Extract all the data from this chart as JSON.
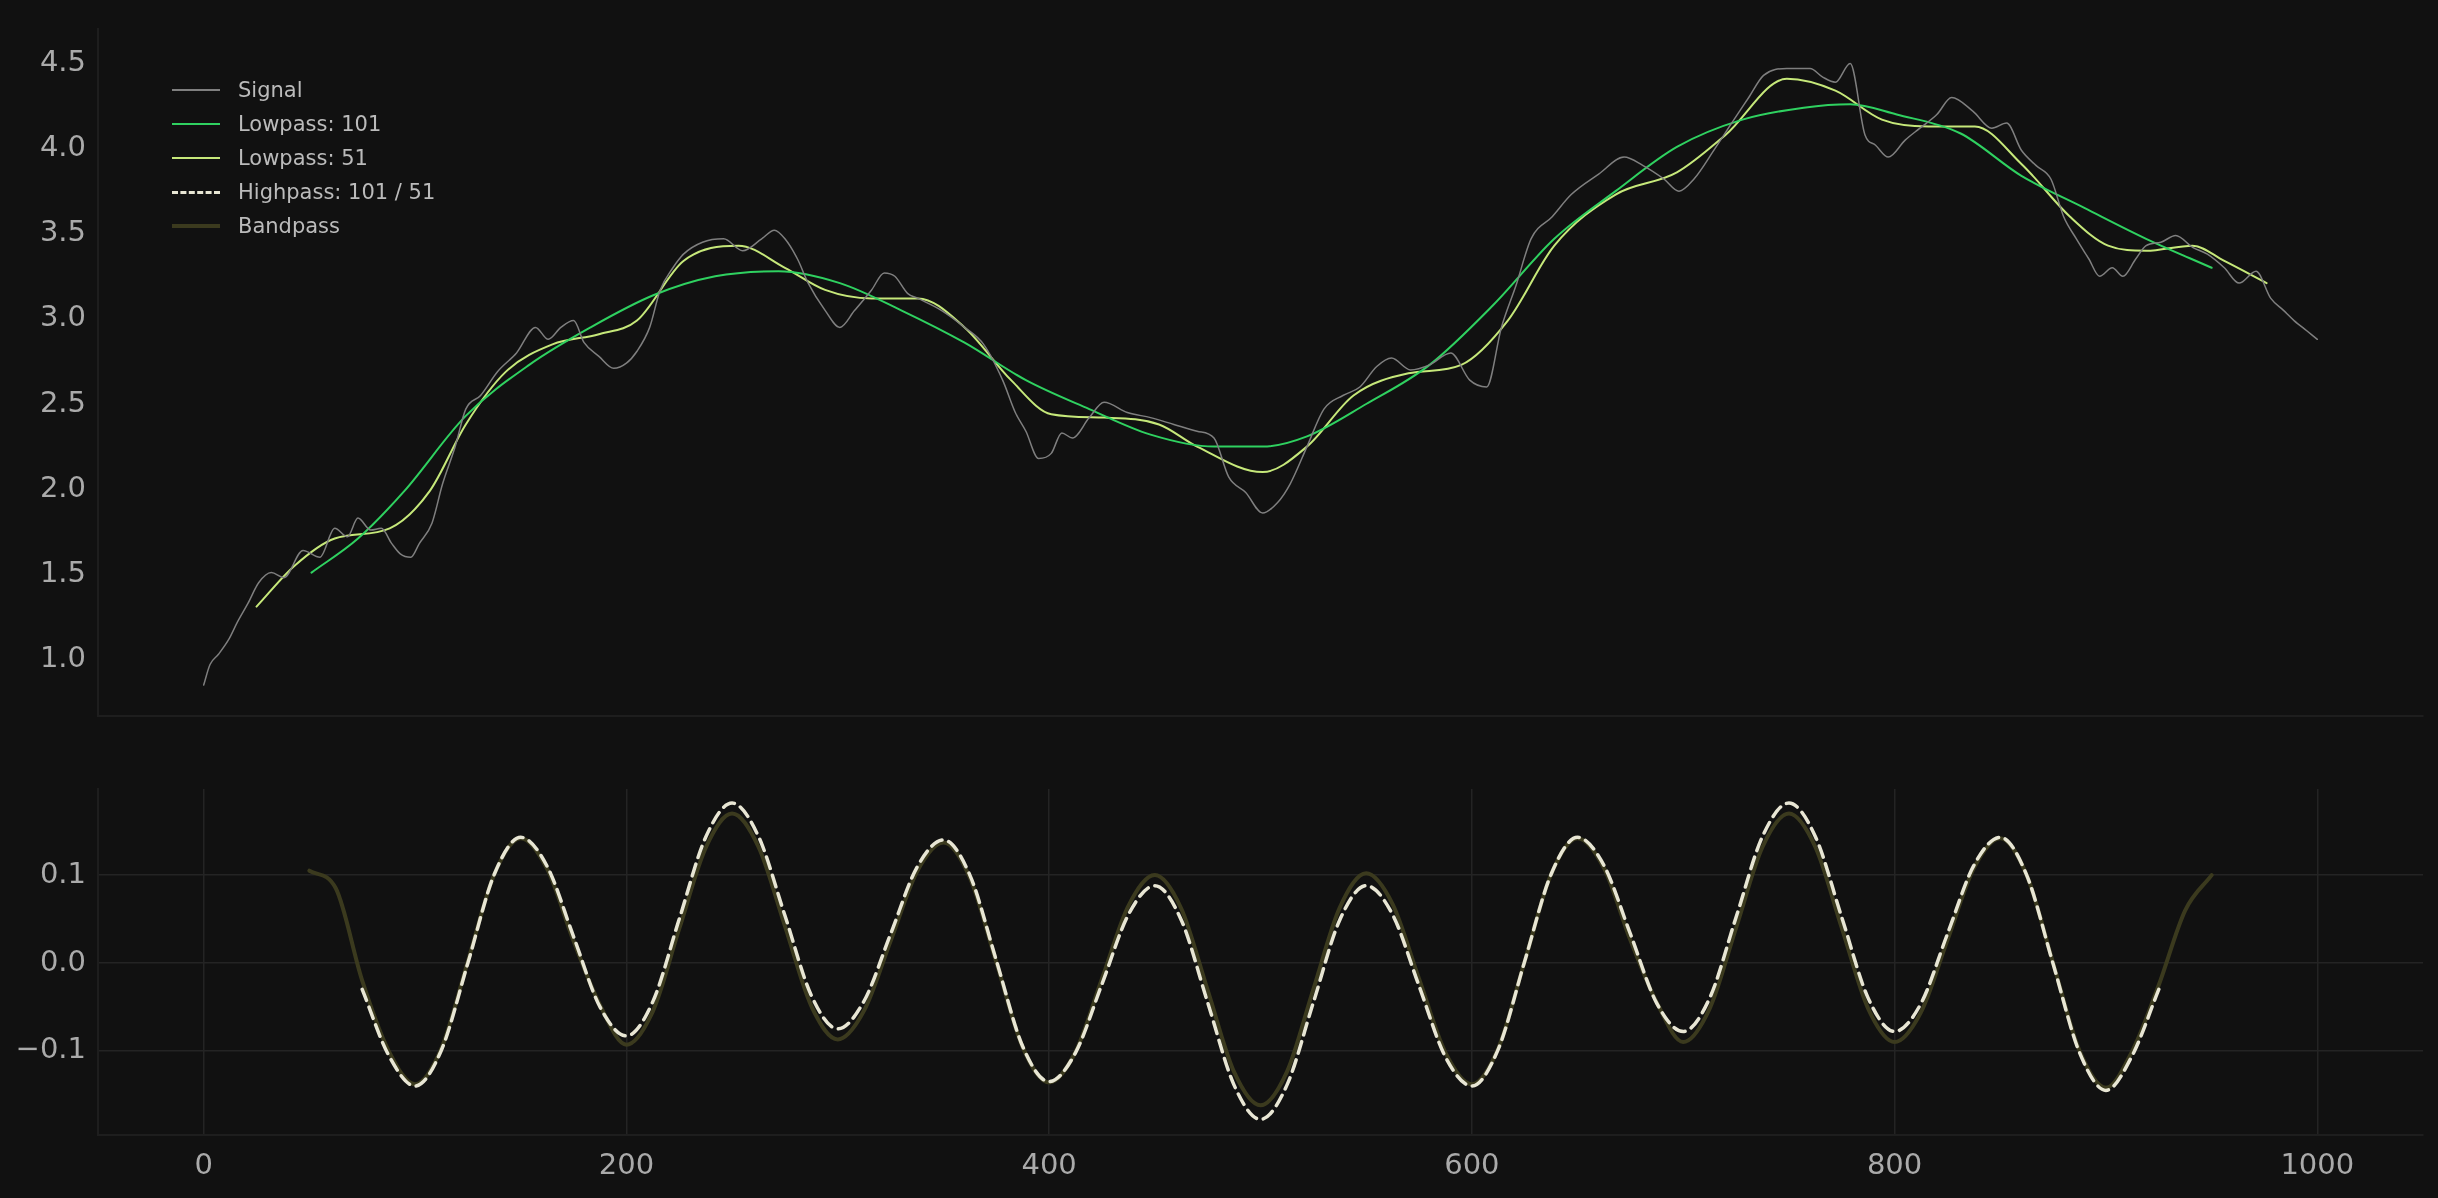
{
  "chart_data": [
    {
      "type": "line",
      "xlim": [
        -50,
        1050
      ],
      "xticks": [
        0,
        200,
        400,
        600,
        800,
        1000
      ],
      "ylim": [
        0.67,
        4.7
      ],
      "yticks": [
        {
          "value": 1,
          "label": "1.0"
        },
        {
          "value": 1.5,
          "label": "1.5"
        },
        {
          "value": 2,
          "label": "2.0"
        },
        {
          "value": 2.5,
          "label": "2.5"
        },
        {
          "value": 3,
          "label": "3.0"
        },
        {
          "value": 3.5,
          "label": "3.5"
        },
        {
          "value": 4,
          "label": "4.0"
        },
        {
          "value": 4.5,
          "label": "4.5"
        }
      ],
      "tick_labels": "y",
      "grid": false,
      "legend": "top left",
      "marker": "none",
      "series": [
        {
          "name": "Signal",
          "color": "#7f7f7f",
          "line_style": "solid",
          "x": [
            0,
            3,
            7,
            12,
            16,
            21,
            26,
            32,
            38,
            47,
            55,
            62,
            68,
            73,
            79,
            84,
            89,
            93,
            98,
            102,
            108,
            113,
            119,
            124,
            131,
            139,
            148,
            157,
            163,
            169,
            175,
            180,
            187,
            194,
            200,
            205,
            211,
            216,
            222,
            227,
            236,
            246,
            255,
            264,
            270,
            275,
            281,
            286,
            294,
            301,
            308,
            316,
            322,
            327,
            333,
            338,
            349,
            360,
            369,
            378,
            384,
            389,
            395,
            401,
            406,
            411,
            419,
            426,
            437,
            448,
            459,
            470,
            478,
            485,
            493,
            501,
            508,
            514,
            522,
            530,
            539,
            547,
            555,
            562,
            571,
            580,
            590,
            599,
            607,
            614,
            621,
            628,
            638,
            647,
            660,
            672,
            681,
            691,
            698,
            705,
            715,
            724,
            731,
            738,
            749,
            760,
            766,
            772,
            779,
            786,
            791,
            797,
            805,
            812,
            820,
            827,
            837,
            846,
            853,
            860,
            867,
            874,
            880,
            886,
            892,
            897,
            903,
            908,
            914,
            919,
            926,
            933,
            941,
            948,
            956,
            963,
            971,
            978,
            984,
            989,
            995,
            1000
          ],
          "values": [
            0.85,
            0.97,
            1.03,
            1.12,
            1.22,
            1.33,
            1.45,
            1.51,
            1.48,
            1.64,
            1.6,
            1.77,
            1.72,
            1.83,
            1.76,
            1.77,
            1.68,
            1.62,
            1.6,
            1.68,
            1.8,
            2.03,
            2.25,
            2.47,
            2.55,
            2.69,
            2.8,
            2.95,
            2.88,
            2.95,
            2.99,
            2.86,
            2.78,
            2.71,
            2.74,
            2.81,
            2.95,
            3.17,
            3.3,
            3.38,
            3.45,
            3.47,
            3.4,
            3.47,
            3.52,
            3.47,
            3.35,
            3.21,
            3.05,
            2.95,
            3.05,
            3.17,
            3.27,
            3.25,
            3.15,
            3.12,
            3.05,
            2.95,
            2.85,
            2.64,
            2.45,
            2.34,
            2.18,
            2.21,
            2.33,
            2.3,
            2.42,
            2.51,
            2.45,
            2.42,
            2.38,
            2.34,
            2.3,
            2.07,
            1.98,
            1.86,
            1.92,
            2.03,
            2.25,
            2.47,
            2.55,
            2.6,
            2.72,
            2.77,
            2.7,
            2.73,
            2.8,
            2.64,
            2.6,
            2.95,
            3.2,
            3.47,
            3.6,
            3.73,
            3.85,
            3.95,
            3.9,
            3.82,
            3.75,
            3.82,
            4.0,
            4.17,
            4.3,
            4.43,
            4.47,
            4.47,
            4.42,
            4.39,
            4.5,
            4.08,
            4.02,
            3.95,
            4.05,
            4.12,
            4.2,
            4.3,
            4.22,
            4.12,
            4.15,
            3.99,
            3.9,
            3.82,
            3.6,
            3.47,
            3.35,
            3.25,
            3.3,
            3.25,
            3.35,
            3.43,
            3.45,
            3.49,
            3.42,
            3.38,
            3.3,
            3.21,
            3.28,
            3.12,
            3.05,
            2.99,
            2.93,
            2.88
          ]
        },
        {
          "name": "Lowpass: 101",
          "color": "#2fd160",
          "line_style": "solid",
          "x": [
            51,
            73,
            95,
            124,
            154,
            183,
            213,
            242,
            272,
            301,
            330,
            360,
            389,
            419,
            448,
            478,
            501,
            522,
            550,
            580,
            610,
            639,
            668,
            697,
            728,
            757,
            779,
            801,
            831,
            860,
            890,
            919,
            950
          ],
          "values": [
            1.51,
            1.71,
            1.99,
            2.43,
            2.73,
            2.95,
            3.14,
            3.25,
            3.28,
            3.21,
            3.05,
            2.86,
            2.64,
            2.47,
            2.32,
            2.25,
            2.25,
            2.31,
            2.5,
            2.73,
            3.08,
            3.47,
            3.75,
            4.01,
            4.17,
            4.24,
            4.26,
            4.2,
            4.09,
            3.84,
            3.65,
            3.47,
            3.3
          ]
        },
        {
          "name": "Lowpass: 51",
          "color": "#c6e87a",
          "line_style": "solid",
          "x": [
            25,
            43,
            62,
            88,
            107,
            124,
            143,
            165,
            187,
            205,
            227,
            253,
            275,
            294,
            316,
            338,
            360,
            382,
            401,
            426,
            452,
            470,
            501,
            522,
            544,
            570,
            595,
            617,
            639,
            668,
            697,
            720,
            749,
            772,
            794,
            816,
            838,
            860,
            883,
            901,
            919,
            941,
            956,
            976
          ],
          "values": [
            1.31,
            1.55,
            1.71,
            1.77,
            1.99,
            2.38,
            2.69,
            2.85,
            2.91,
            2.99,
            3.34,
            3.43,
            3.3,
            3.17,
            3.12,
            3.12,
            2.95,
            2.64,
            2.44,
            2.42,
            2.38,
            2.25,
            2.1,
            2.25,
            2.55,
            2.68,
            2.73,
            2.99,
            3.43,
            3.73,
            3.86,
            4.08,
            4.41,
            4.34,
            4.17,
            4.13,
            4.13,
            3.91,
            3.6,
            3.43,
            3.4,
            3.43,
            3.34,
            3.21
          ]
        }
      ]
    },
    {
      "type": "line",
      "xlim": [
        -50,
        1050
      ],
      "xticks": [
        0,
        200,
        400,
        600,
        800,
        1000
      ],
      "ylim": [
        -0.196,
        0.198
      ],
      "yticks": [
        {
          "value": -0.1,
          "label": "−0.1"
        },
        {
          "value": 0,
          "label": "0.0"
        },
        {
          "value": 0.1,
          "label": "0.1"
        }
      ],
      "grid": true,
      "marker": "none",
      "series": [
        {
          "name": "Highpass: 101 / 51",
          "color": "#e8e6d4",
          "line_style": "dashed",
          "x": [
            75,
            87.5,
            100,
            112.5,
            125,
            137.5,
            150,
            162.5,
            175,
            187.5,
            200,
            212.5,
            225,
            237.5,
            250,
            262.5,
            275,
            287.5,
            300,
            312.5,
            325,
            337.5,
            350,
            362.5,
            375,
            387.5,
            400,
            412.5,
            425,
            437.5,
            450,
            462.5,
            475,
            487.5,
            500,
            512.5,
            525,
            537.5,
            550,
            562.5,
            575,
            587.5,
            600,
            612.5,
            625,
            637.5,
            650,
            662.5,
            675,
            687.5,
            700,
            712.5,
            725,
            737.5,
            750,
            762.5,
            775,
            787.5,
            800,
            812.5,
            825,
            837.5,
            850,
            862.5,
            875,
            887.5,
            900,
            912.5,
            925
          ],
          "values": [
            -0.03,
            -0.105,
            -0.14,
            -0.099,
            0,
            0.101,
            0.143,
            0.11,
            0.03,
            -0.05,
            -0.083,
            -0.044,
            0.05,
            0.143,
            0.182,
            0.144,
            0.054,
            -0.037,
            -0.075,
            -0.043,
            0.033,
            0.109,
            0.14,
            0.1,
            0.003,
            -0.095,
            -0.135,
            -0.102,
            -0.024,
            0.055,
            0.088,
            0.049,
            -0.045,
            -0.139,
            -0.178,
            -0.139,
            -0.045,
            0.049,
            0.088,
            0.055,
            -0.026,
            -0.107,
            -0.14,
            -0.098,
            0.002,
            0.101,
            0.143,
            0.111,
            0.033,
            -0.046,
            -0.078,
            -0.04,
            0.052,
            0.144,
            0.182,
            0.144,
            0.052,
            -0.04,
            -0.078,
            -0.046,
            0.033,
            0.111,
            0.143,
            0.1,
            -0.001,
            -0.102,
            -0.145,
            -0.105,
            -0.03
          ]
        },
        {
          "name": "Bandpass",
          "color": "#3b3a1e",
          "line_style": "solid",
          "x": [
            50,
            62.5,
            75,
            87.5,
            100,
            112.5,
            125,
            137.5,
            150,
            162.5,
            175,
            187.5,
            200,
            212.5,
            225,
            237.5,
            250,
            262.5,
            275,
            287.5,
            300,
            312.5,
            325,
            337.5,
            350,
            362.5,
            375,
            387.5,
            400,
            412.5,
            425,
            437.5,
            450,
            462.5,
            475,
            487.5,
            500,
            512.5,
            525,
            537.5,
            550,
            562.5,
            575,
            587.5,
            600,
            612.5,
            625,
            637.5,
            650,
            662.5,
            675,
            687.5,
            700,
            712.5,
            725,
            737.5,
            750,
            762.5,
            775,
            787.5,
            800,
            812.5,
            825,
            837.5,
            850,
            862.5,
            875,
            887.5,
            900,
            912.5,
            925,
            937.5,
            950
          ],
          "values": [
            0.105,
            0.085,
            -0.02,
            -0.1,
            -0.138,
            -0.097,
            0.002,
            0.101,
            0.142,
            0.107,
            0.025,
            -0.048,
            -0.093,
            -0.055,
            0.039,
            0.131,
            0.17,
            0.132,
            0.042,
            -0.049,
            -0.087,
            -0.054,
            0.025,
            0.104,
            0.137,
            0.097,
            0.001,
            -0.096,
            -0.136,
            -0.101,
            -0.018,
            0.065,
            0.1,
            0.062,
            -0.031,
            -0.124,
            -0.162,
            -0.124,
            -0.03,
            0.063,
            0.102,
            0.067,
            -0.018,
            -0.102,
            -0.138,
            -0.097,
            0.002,
            0.101,
            0.142,
            0.108,
            0.026,
            -0.045,
            -0.09,
            -0.052,
            0.04,
            0.132,
            0.17,
            0.132,
            0.04,
            -0.052,
            -0.09,
            -0.056,
            0.026,
            0.108,
            0.142,
            0.1,
            0,
            -0.1,
            -0.142,
            -0.1,
            -0.025,
            0.06,
            0.1
          ]
        }
      ]
    }
  ]
}
